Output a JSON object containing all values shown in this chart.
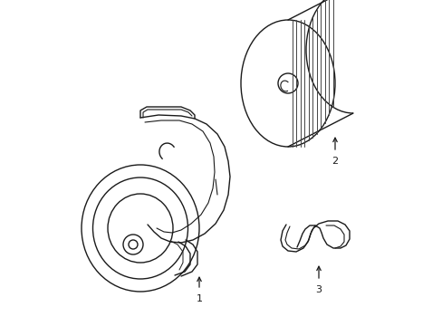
{
  "background_color": "#ffffff",
  "line_color": "#1a1a1a",
  "line_width": 1.0,
  "label_color": "#000000",
  "figsize": [
    4.89,
    3.6
  ],
  "dpi": 100,
  "xlim": [
    0,
    489
  ],
  "ylim": [
    0,
    360
  ]
}
